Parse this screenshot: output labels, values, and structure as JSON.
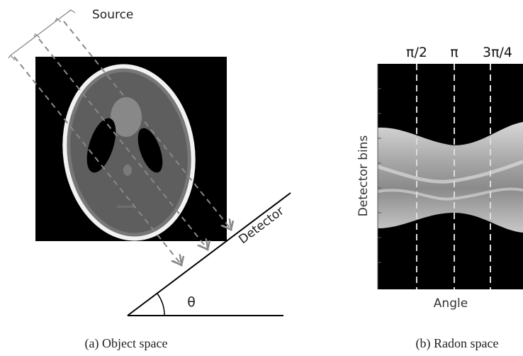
{
  "panel_a": {
    "source_label": "Source",
    "detector_label": "Detector",
    "angle_label": "θ",
    "caption": "(a) Object space"
  },
  "panel_b": {
    "angle_ticks": [
      "π/2",
      "π",
      "3π/4"
    ],
    "y_label": "Detector bins",
    "x_label": "Angle",
    "caption": "(b) Radon space"
  }
}
